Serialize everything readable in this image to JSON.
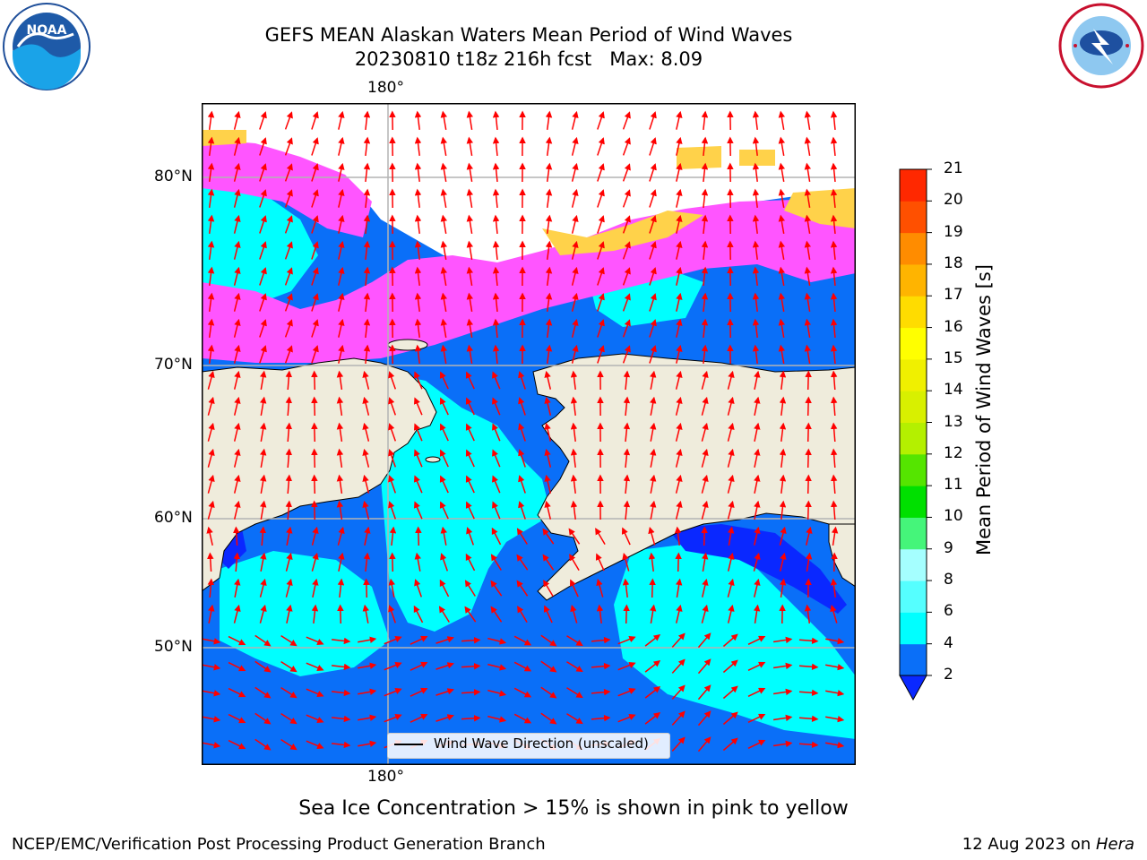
{
  "header": {
    "title_line1": "GEFS MEAN Alaskan Waters Mean Period of Wind Waves",
    "title_line2": "20230810 t18z 216h fcst   Max: 8.09"
  },
  "logos": {
    "left": {
      "name": "noaa-logo",
      "text": "NOAA"
    },
    "right": {
      "name": "nws-logo"
    }
  },
  "map": {
    "lon_labels": [
      "180°",
      "180°"
    ],
    "lat_labels": [
      "80°N",
      "70°N",
      "60°N",
      "50°N"
    ],
    "legend_text": "Wind Wave Direction (unscaled)",
    "colors": {
      "land": "#efecdc",
      "open_water_low": "#0a6ff8",
      "water_4_6": "#00ffff",
      "ice_pink": "#ff55ff",
      "ice_yellow": "#ffd24a",
      "arrow": "#ff0000",
      "grid": "#b4b4b4"
    }
  },
  "colorbar": {
    "label": "Mean Period of Wind Waves [s]",
    "ticks": [
      "2",
      "4",
      "6",
      "8",
      "9",
      "10",
      "11",
      "12",
      "13",
      "14",
      "15",
      "16",
      "17",
      "18",
      "19",
      "20",
      "21"
    ],
    "colors": [
      "#0a6ff8",
      "#00ffff",
      "#55ffff",
      "#a5ffff",
      "#45f57a",
      "#00e000",
      "#55e500",
      "#b4f000",
      "#d8f000",
      "#f0f000",
      "#ffff00",
      "#ffdc00",
      "#ffb400",
      "#ff8c00",
      "#ff5000",
      "#ff2800",
      "#ff0000"
    ],
    "under_color": "#0a28ff"
  },
  "caption": "Sea Ice Concentration > 15% is shown in pink to yellow",
  "footer": {
    "left": "NCEP/EMC/Verification Post Processing Product Generation Branch",
    "right_prefix": "12 Aug 2023 on ",
    "right_italic": "Hera"
  }
}
